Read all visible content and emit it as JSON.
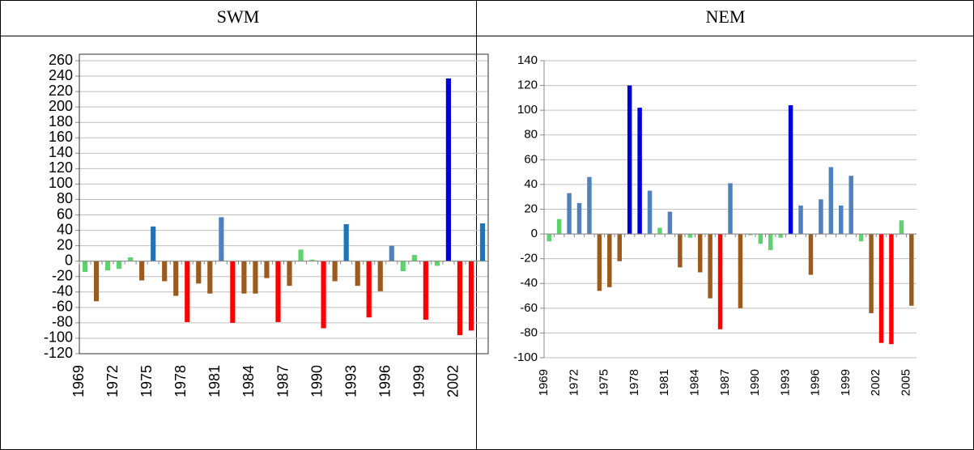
{
  "chart_data": [
    {
      "type": "bar",
      "title": "SWM",
      "categories": [
        "1969",
        null,
        null,
        "1972",
        null,
        null,
        "1975",
        null,
        null,
        "1978",
        null,
        null,
        "1981",
        null,
        null,
        "1984",
        null,
        null,
        "1987",
        null,
        null,
        "1990",
        null,
        null,
        "1993",
        null,
        null,
        "1996",
        null,
        null,
        "1999",
        null,
        null,
        "2002",
        null,
        null
      ],
      "values": [
        -14,
        -52,
        -12,
        -10,
        5,
        -25,
        45,
        -26,
        -45,
        -79,
        -29,
        -42,
        57,
        -80,
        -42,
        -42,
        -22,
        -79,
        -32,
        15,
        2,
        -87,
        -26,
        48,
        -32,
        -73,
        -39,
        20,
        -13,
        8,
        -76,
        -6,
        237,
        -96,
        -90,
        49
      ],
      "colors": [
        "#5dd36d",
        "#9c5b1c",
        "#5dd36d",
        "#5dd36d",
        "#5dd36d",
        "#9c5b1c",
        "#1c75bc",
        "#9c5b1c",
        "#9c5b1c",
        "#ff0000",
        "#9c5b1c",
        "#9c5b1c",
        "#4f81bd",
        "#ff0000",
        "#9c5b1c",
        "#9c5b1c",
        "#9c5b1c",
        "#ff0000",
        "#9c5b1c",
        "#5dd36d",
        "#5dd36d",
        "#ff0000",
        "#9c5b1c",
        "#1c75bc",
        "#9c5b1c",
        "#ff0000",
        "#9c5b1c",
        "#4f81bd",
        "#5dd36d",
        "#5dd36d",
        "#ff0000",
        "#5dd36d",
        "#0000dd",
        "#ff0000",
        "#ff0000",
        "#1c75bc"
      ],
      "ylim": [
        -120,
        260
      ],
      "yticks": [
        -120,
        -100,
        -80,
        -60,
        -40,
        -20,
        0,
        20,
        40,
        60,
        80,
        100,
        120,
        140,
        160,
        180,
        200,
        220,
        240,
        260
      ],
      "grid": true
    },
    {
      "type": "bar",
      "title": "NEM",
      "categories": [
        "1969",
        null,
        null,
        "1972",
        null,
        null,
        "1975",
        null,
        null,
        "1978",
        null,
        null,
        "1981",
        null,
        null,
        "1984",
        null,
        null,
        "1987",
        null,
        null,
        "1990",
        null,
        null,
        "1993",
        null,
        null,
        "1996",
        null,
        null,
        "1999",
        null,
        null,
        "2002",
        null,
        null,
        "2005"
      ],
      "values": [
        -6,
        12,
        33,
        25,
        46,
        -46,
        -43,
        -22,
        120,
        102,
        35,
        5,
        18,
        -27,
        -3,
        -31,
        -52,
        -77,
        41,
        -60,
        -1,
        -8,
        -13,
        -3,
        104,
        23,
        -33,
        28,
        54,
        23,
        47,
        -6,
        -64,
        -88,
        -89,
        11,
        -58
      ],
      "colors": [
        "#5dd36d",
        "#5dd36d",
        "#4f81bd",
        "#4f81bd",
        "#4f81bd",
        "#9c5b1c",
        "#9c5b1c",
        "#9c5b1c",
        "#0000dd",
        "#0000dd",
        "#4f81bd",
        "#5dd36d",
        "#4f81bd",
        "#9c5b1c",
        "#5dd36d",
        "#9c5b1c",
        "#9c5b1c",
        "#ff0000",
        "#4f81bd",
        "#9c5b1c",
        "#5dd36d",
        "#5dd36d",
        "#5dd36d",
        "#5dd36d",
        "#0000dd",
        "#4f81bd",
        "#9c5b1c",
        "#4f81bd",
        "#4f81bd",
        "#4f81bd",
        "#4f81bd",
        "#5dd36d",
        "#9c5b1c",
        "#ff0000",
        "#ff0000",
        "#5dd36d",
        "#9c5b1c"
      ],
      "ylim": [
        -100,
        140
      ],
      "yticks": [
        -100,
        -80,
        -60,
        -40,
        -20,
        0,
        20,
        40,
        60,
        80,
        100,
        120,
        140
      ],
      "grid": true
    }
  ]
}
